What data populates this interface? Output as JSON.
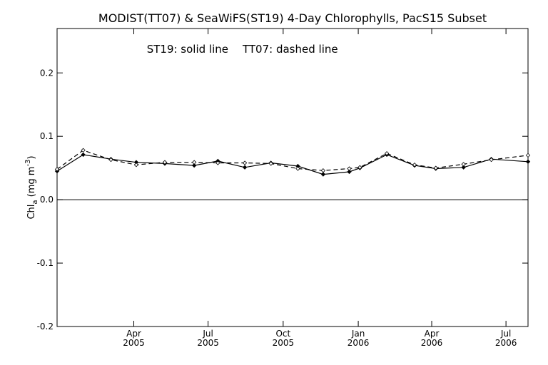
{
  "chart_data": {
    "type": "line",
    "title": "MODIST(TT07) & SeaWiFS(ST19) 4-Day Chlorophylls, PacS15 Subset",
    "annotation_left": "ST19: solid line",
    "annotation_right": "TT07: dashed line",
    "ylabel_main": "Chl",
    "ylabel_sub": "a",
    "ylabel_unit_open": " (mg m",
    "ylabel_unit_sup": "-3",
    "ylabel_unit_close": ")",
    "ylim": [
      -0.2,
      0.27
    ],
    "xlim": [
      "2004-12-28",
      "2006-07-28"
    ],
    "y_ticks": [
      {
        "value": -0.2,
        "label": "-0.2"
      },
      {
        "value": -0.1,
        "label": "-0.1"
      },
      {
        "value": 0.0,
        "label": "0.0"
      },
      {
        "value": 0.1,
        "label": "0.1"
      },
      {
        "value": 0.2,
        "label": "0.2"
      }
    ],
    "x_ticks": [
      {
        "date": "2005-04-01",
        "month": "Apr",
        "year": "2005"
      },
      {
        "date": "2005-07-01",
        "month": "Jul",
        "year": "2005"
      },
      {
        "date": "2005-10-01",
        "month": "Oct",
        "year": "2005"
      },
      {
        "date": "2006-01-01",
        "month": "Jan",
        "year": "2006"
      },
      {
        "date": "2006-04-01",
        "month": "Apr",
        "year": "2006"
      },
      {
        "date": "2006-07-01",
        "month": "Jul",
        "year": "2006"
      }
    ],
    "zero_line": 0.0,
    "x": [
      "2004-12-28",
      "2005-01-29",
      "2005-03-04",
      "2005-04-04",
      "2005-05-09",
      "2005-06-14",
      "2005-07-13",
      "2005-08-15",
      "2005-09-16",
      "2005-10-19",
      "2005-11-19",
      "2005-12-21",
      "2006-01-03",
      "2006-02-05",
      "2006-03-11",
      "2006-04-06",
      "2006-05-10",
      "2006-06-13",
      "2006-07-28"
    ],
    "series": [
      {
        "name": "ST19",
        "style": "solid",
        "values": [
          0.045,
          0.071,
          0.064,
          0.059,
          0.057,
          0.054,
          0.061,
          0.051,
          0.058,
          0.053,
          0.04,
          0.044,
          0.05,
          0.071,
          0.054,
          0.049,
          0.051,
          0.064,
          0.06
        ]
      },
      {
        "name": "TT07",
        "style": "dashed",
        "values": [
          0.048,
          0.078,
          0.063,
          0.055,
          0.059,
          0.059,
          0.058,
          0.058,
          0.057,
          0.049,
          0.046,
          0.049,
          0.051,
          0.073,
          0.055,
          0.05,
          0.056,
          0.063,
          0.07
        ]
      }
    ],
    "grid": false,
    "line_color": "#000000"
  }
}
